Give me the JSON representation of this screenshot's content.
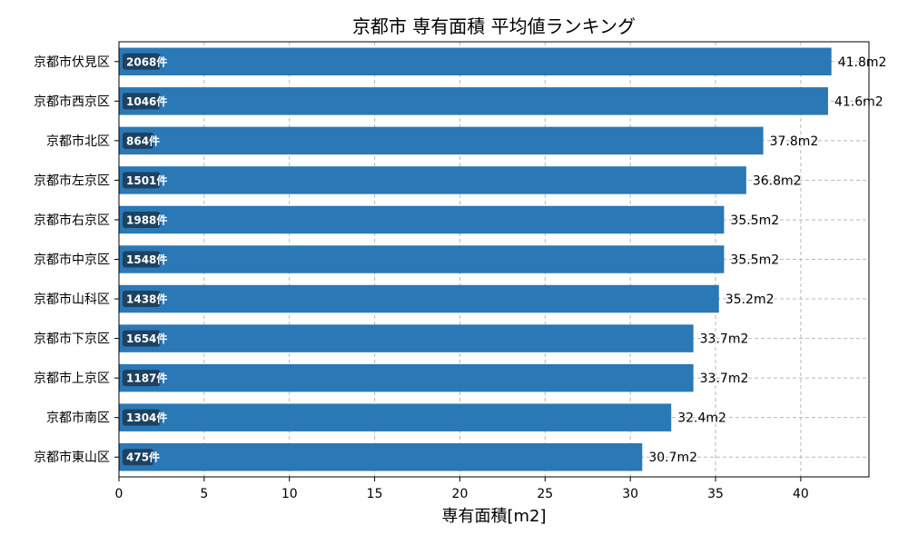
{
  "chart_data": {
    "type": "bar",
    "orientation": "horizontal",
    "title": "京都市 専有面積 平均値ランキング",
    "xlabel": "専有面積[m2]",
    "ylabel": "",
    "xlim": [
      0,
      44
    ],
    "xticks": [
      0,
      5,
      10,
      15,
      20,
      25,
      30,
      35,
      40
    ],
    "grid": true,
    "bar_color": "#2a78b6",
    "badge_color": "#1d4262",
    "categories": [
      "京都市伏見区",
      "京都市西京区",
      "京都市北区",
      "京都市左京区",
      "京都市右京区",
      "京都市中京区",
      "京都市山科区",
      "京都市下京区",
      "京都市上京区",
      "京都市南区",
      "京都市東山区"
    ],
    "values": [
      41.8,
      41.6,
      37.8,
      36.8,
      35.5,
      35.5,
      35.2,
      33.7,
      33.7,
      32.4,
      30.7
    ],
    "value_labels": [
      "41.8m2",
      "41.6m2",
      "37.8m2",
      "36.8m2",
      "35.5m2",
      "35.5m2",
      "35.2m2",
      "33.7m2",
      "33.7m2",
      "32.4m2",
      "30.7m2"
    ],
    "counts": [
      "2068件",
      "1046件",
      "864件",
      "1501件",
      "1988件",
      "1548件",
      "1438件",
      "1654件",
      "1187件",
      "1304件",
      "475件"
    ]
  }
}
